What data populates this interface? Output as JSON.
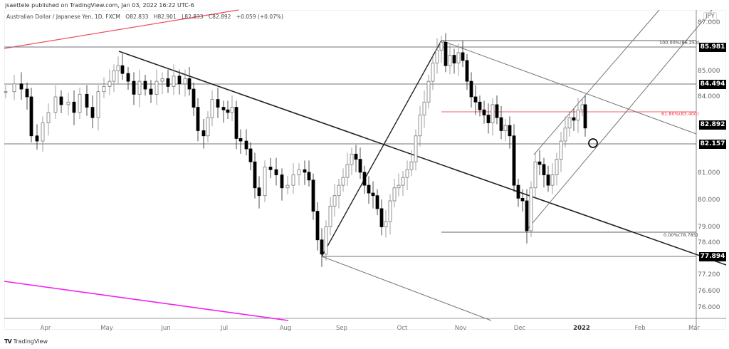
{
  "header": {
    "publisher": "jsaettele published on TradingView.com, Jan 03, 2022 16:22 UTC-6"
  },
  "legend": {
    "symbol": "Australian Dollar / Japanese Yen, 1D, FXCM",
    "open": "O82.833",
    "high": "H82.901",
    "low": "L82.833",
    "close": "C82.892",
    "change": "+0.059 (+0.07%)"
  },
  "currency_button": "JPY",
  "footer": {
    "logo": "TV",
    "brand": "TradingView"
  },
  "colors": {
    "up_candle": "#ffffff",
    "down_candle": "#000000",
    "fib_line": "#f23645",
    "red_trendline": "#f23645",
    "magenta_trendline": "#e91ee9",
    "level_line": "#787b86",
    "trendline": "#131722"
  },
  "fib_labels": {
    "top": "100.00%(86.253)",
    "mid": "61.80%(83.400)",
    "bottom": "0.00%(78.785)"
  },
  "chart_data": {
    "type": "candlestick",
    "title": "Australian Dollar / Japanese Yen, 1D, FXCM",
    "xlabel": "",
    "ylabel": "JPY",
    "x_ticks": [
      "Apr",
      "May",
      "Jun",
      "Jul",
      "Aug",
      "Sep",
      "Oct",
      "Nov",
      "Dec",
      "2022",
      "Feb",
      "Mar"
    ],
    "y_ticks": [
      87.0,
      85.0,
      84.0,
      83.0,
      82.0,
      81.0,
      80.0,
      79.0,
      78.4,
      77.2,
      76.6,
      76.0
    ],
    "y_tick_labels": [
      "87.000",
      "85.000",
      "84.000",
      "83.000",
      "82.000",
      "81.000",
      "80.000",
      "79.000",
      "78.400",
      "77.200",
      "76.600",
      "76.000"
    ],
    "ylim": [
      75.7,
      87.4
    ],
    "price_badges": [
      "85.981",
      "84.494",
      "82.892",
      "82.157",
      "77.894"
    ],
    "horizontal_levels": [
      85.981,
      84.494,
      82.157,
      77.894
    ],
    "fibonacci": {
      "0.0": 78.785,
      "61.8": 83.4,
      "100.0": 86.253
    },
    "last_close": 82.892,
    "ohlc_last": {
      "open": 82.833,
      "high": 82.901,
      "low": 82.833,
      "close": 82.892,
      "change": 0.059,
      "change_pct": 0.07
    },
    "approx_monthly_path": [
      {
        "month": "Mar",
        "close": 84.3
      },
      {
        "month": "Apr",
        "close": 83.2
      },
      {
        "month": "May",
        "close": 84.9
      },
      {
        "month": "Jun",
        "close": 84.5
      },
      {
        "month": "Jul",
        "close": 81.3
      },
      {
        "month": "Aug",
        "close": 78.0
      },
      {
        "month": "Sep",
        "close": 80.5
      },
      {
        "month": "Oct",
        "close": 85.5
      },
      {
        "month": "Nov",
        "close": 82.8
      },
      {
        "month": "Dec",
        "close": 79.0
      },
      {
        "month": "Dec-end",
        "close": 83.4
      },
      {
        "month": "Jan",
        "close": 82.892
      }
    ],
    "annotations": [
      "100.00%(86.253)",
      "61.80%(83.400)",
      "0.00%(78.785)",
      "circle marker near 82.157 at early January"
    ],
    "grid": false,
    "legend_position": "top-left"
  }
}
